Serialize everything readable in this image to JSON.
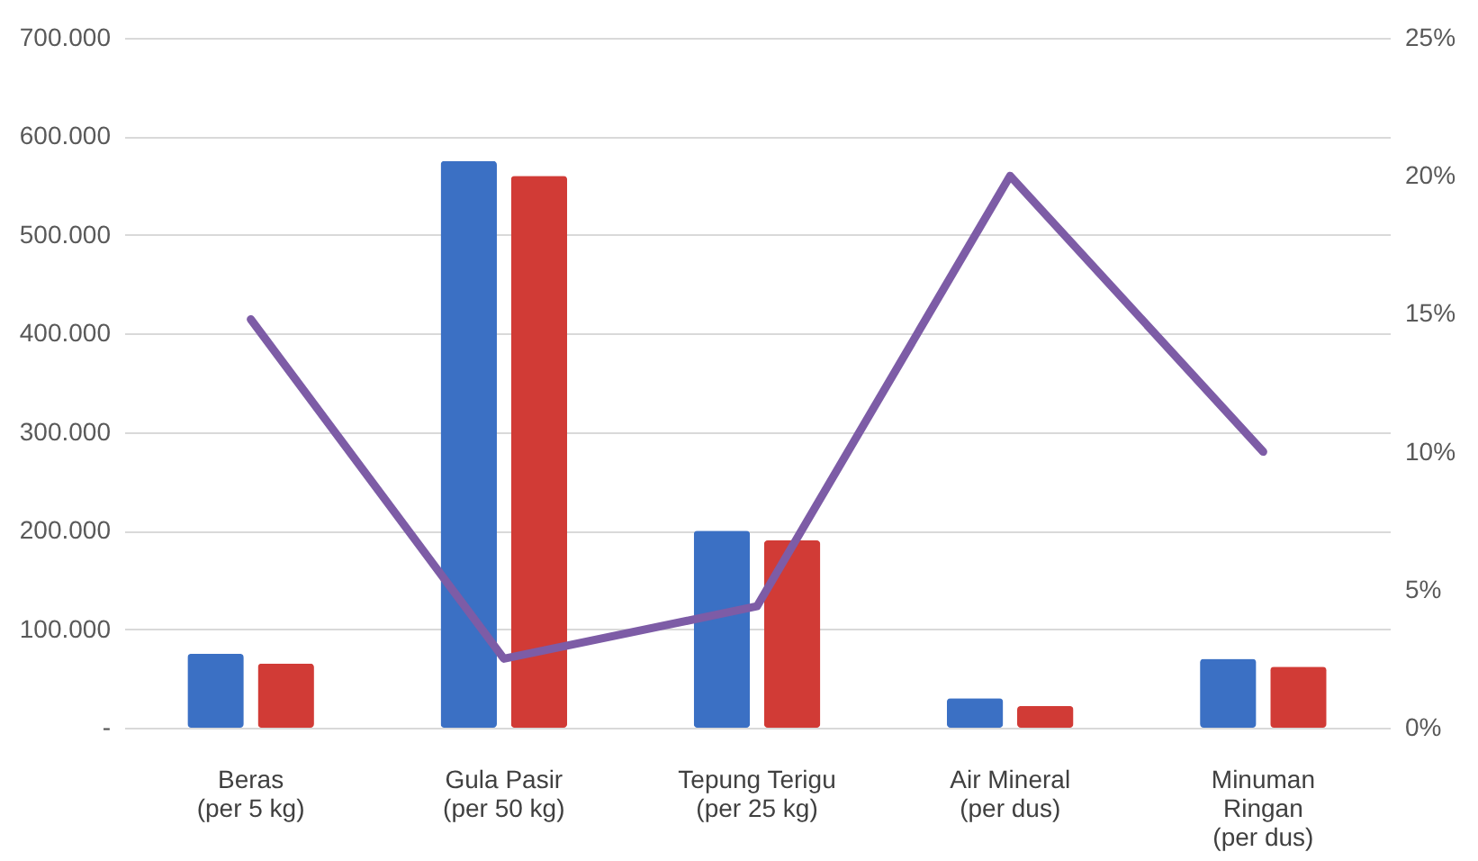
{
  "chart_data": {
    "type": "bar",
    "categories": [
      "Beras\n(per 5 kg)",
      "Gula Pasir\n(per 50 kg)",
      "Tepung Terigu\n(per 25 kg)",
      "Air Mineral\n(per dus)",
      "Minuman\nRingan\n(per dus)"
    ],
    "series": [
      {
        "color": "#3b70c4",
        "values": [
          75000,
          575000,
          200000,
          30000,
          70000
        ]
      },
      {
        "color": "#d13b36",
        "values": [
          65000,
          560000,
          190000,
          22000,
          62000
        ]
      },
      {
        "type": "line",
        "axis": "y2",
        "color": "#7d5ca6",
        "values": [
          14.8,
          2.5,
          4.4,
          20,
          10
        ]
      }
    ],
    "ylim": [
      0,
      700000
    ],
    "yticks": [
      {
        "value": 0,
        "label": "-"
      },
      {
        "value": 100000,
        "label": "100.000"
      },
      {
        "value": 200000,
        "label": "200.000"
      },
      {
        "value": 300000,
        "label": "300.000"
      },
      {
        "value": 400000,
        "label": "400.000"
      },
      {
        "value": 500000,
        "label": "500.000"
      },
      {
        "value": 600000,
        "label": "600.000"
      },
      {
        "value": 700000,
        "label": "700.000"
      }
    ],
    "y2lim": [
      0,
      25
    ],
    "y2ticks": [
      {
        "value": 0,
        "label": "0%"
      },
      {
        "value": 5,
        "label": "5%"
      },
      {
        "value": 10,
        "label": "10%"
      },
      {
        "value": 15,
        "label": "15%"
      },
      {
        "value": 20,
        "label": "20%"
      },
      {
        "value": 25,
        "label": "25%"
      }
    ],
    "grid": "y",
    "legend": false
  }
}
